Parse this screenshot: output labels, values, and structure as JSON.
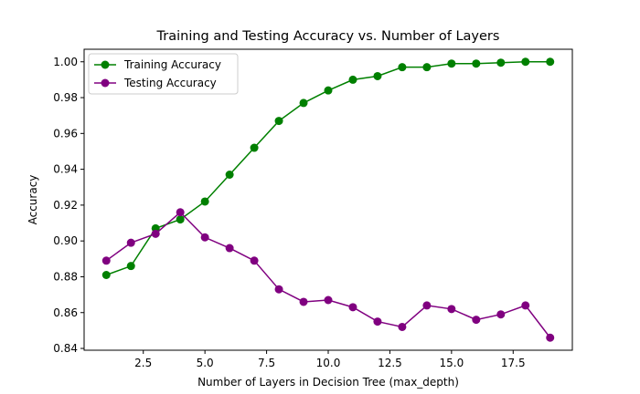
{
  "chart_data": {
    "type": "line",
    "title": "Training and Testing Accuracy vs. Number of Layers",
    "xlabel": "Number of Layers in Decision Tree (max_depth)",
    "ylabel": "Accuracy",
    "xlim": [
      0.1,
      19.9
    ],
    "ylim": [
      0.839,
      1.007
    ],
    "xticks": [
      2.5,
      5.0,
      7.5,
      10.0,
      12.5,
      15.0,
      17.5
    ],
    "xtick_labels": [
      "2.5",
      "5.0",
      "7.5",
      "10.0",
      "12.5",
      "15.0",
      "17.5"
    ],
    "yticks": [
      0.84,
      0.86,
      0.88,
      0.9,
      0.92,
      0.94,
      0.96,
      0.98,
      1.0
    ],
    "ytick_labels": [
      "0.84",
      "0.86",
      "0.88",
      "0.90",
      "0.92",
      "0.94",
      "0.96",
      "0.98",
      "1.00"
    ],
    "grid": false,
    "legend_position": "top-left",
    "x": [
      1,
      2,
      3,
      4,
      5,
      6,
      7,
      8,
      9,
      10,
      11,
      12,
      13,
      14,
      15,
      16,
      17,
      18,
      19
    ],
    "series": [
      {
        "name": "Training Accuracy",
        "color": "#008000",
        "marker": "circle",
        "values": [
          0.881,
          0.886,
          0.907,
          0.912,
          0.922,
          0.937,
          0.952,
          0.967,
          0.977,
          0.984,
          0.99,
          0.992,
          0.997,
          0.997,
          0.999,
          0.999,
          0.9995,
          1.0,
          1.0
        ]
      },
      {
        "name": "Testing Accuracy",
        "color": "#800080",
        "marker": "circle",
        "values": [
          0.889,
          0.899,
          0.904,
          0.916,
          0.902,
          0.896,
          0.889,
          0.873,
          0.866,
          0.867,
          0.863,
          0.855,
          0.852,
          0.864,
          0.862,
          0.856,
          0.859,
          0.864,
          0.846
        ]
      }
    ]
  }
}
